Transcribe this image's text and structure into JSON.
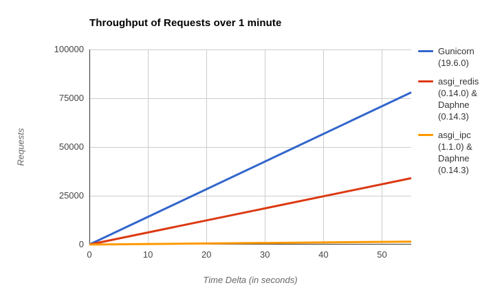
{
  "chart_data": {
    "type": "line",
    "title": "Throughput of Requests over 1 minute",
    "xlabel": "Time Delta (in seconds)",
    "ylabel": "Requests",
    "xlim": [
      0,
      55
    ],
    "ylim": [
      0,
      100000
    ],
    "x_ticks": [
      0,
      10,
      20,
      30,
      40,
      50
    ],
    "y_ticks": [
      0,
      25000,
      50000,
      75000,
      100000
    ],
    "grid": true,
    "legend_position": "right",
    "series": [
      {
        "name": "Gunicorn (19.6.0)",
        "color": "#3366CC",
        "x": [
          0,
          55
        ],
        "values": [
          0,
          78000
        ]
      },
      {
        "name": "asgi_redis (0.14.0) & Daphne (0.14.3)",
        "color": "#DC3912",
        "x": [
          0,
          55
        ],
        "values": [
          0,
          34000
        ]
      },
      {
        "name": "asgi_ipc (1.1.0) & Daphne (0.14.3)",
        "color": "#FF9900",
        "x": [
          0,
          55
        ],
        "values": [
          0,
          1500
        ]
      }
    ]
  },
  "style": {
    "grid_color": "#cccccc",
    "axis_color": "#333333",
    "tick_text_color": "#444444",
    "axis_title_color": "#666666",
    "line_width": 3
  }
}
